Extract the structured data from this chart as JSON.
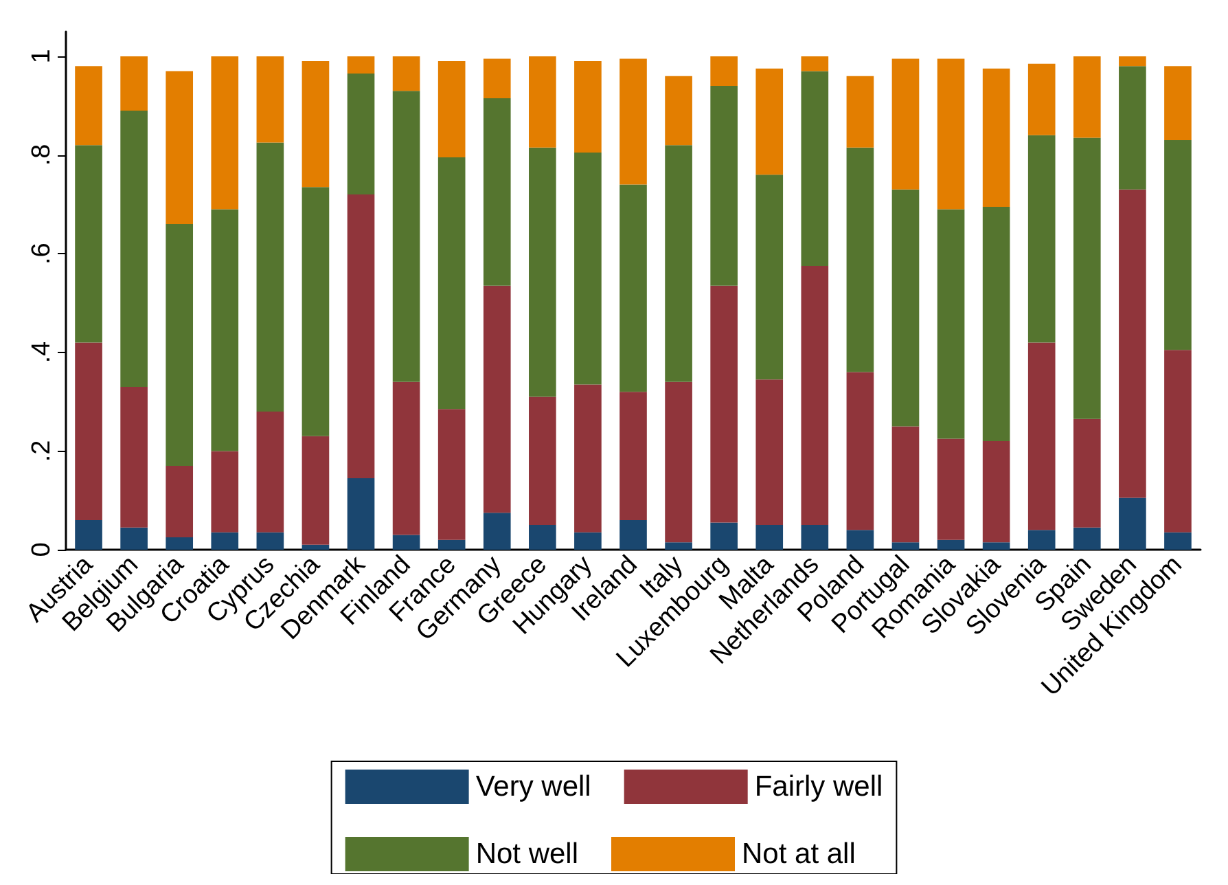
{
  "chart_data": {
    "type": "bar",
    "stacked": true,
    "categories": [
      "Austria",
      "Belgium",
      "Bulgaria",
      "Croatia",
      "Cyprus",
      "Czechia",
      "Denmark",
      "Finland",
      "France",
      "Germany",
      "Greece",
      "Hungary",
      "Ireland",
      "Italy",
      "Luxembourg",
      "Malta",
      "Netherlands",
      "Poland",
      "Portugal",
      "Romania",
      "Slovakia",
      "Slovenia",
      "Spain",
      "Sweden",
      "United Kingdom"
    ],
    "series": [
      {
        "name": "Very well",
        "color": "#1a476f",
        "values": [
          0.06,
          0.045,
          0.025,
          0.035,
          0.035,
          0.01,
          0.145,
          0.03,
          0.02,
          0.075,
          0.05,
          0.035,
          0.06,
          0.015,
          0.055,
          0.05,
          0.05,
          0.04,
          0.015,
          0.02,
          0.015,
          0.04,
          0.045,
          0.105,
          0.035
        ]
      },
      {
        "name": "Fairly well",
        "color": "#90353b",
        "values": [
          0.36,
          0.285,
          0.145,
          0.165,
          0.245,
          0.22,
          0.575,
          0.31,
          0.265,
          0.46,
          0.26,
          0.3,
          0.26,
          0.325,
          0.48,
          0.295,
          0.525,
          0.32,
          0.235,
          0.205,
          0.205,
          0.38,
          0.22,
          0.625,
          0.37
        ]
      },
      {
        "name": "Not well",
        "color": "#55752f",
        "values": [
          0.4,
          0.56,
          0.49,
          0.49,
          0.545,
          0.505,
          0.245,
          0.59,
          0.51,
          0.38,
          0.505,
          0.47,
          0.42,
          0.48,
          0.405,
          0.415,
          0.395,
          0.455,
          0.48,
          0.465,
          0.475,
          0.42,
          0.57,
          0.25,
          0.425
        ]
      },
      {
        "name": "Not at all",
        "color": "#e37e00",
        "values": [
          0.16,
          0.11,
          0.31,
          0.31,
          0.175,
          0.255,
          0.035,
          0.07,
          0.195,
          0.08,
          0.185,
          0.185,
          0.255,
          0.14,
          0.06,
          0.215,
          0.03,
          0.145,
          0.265,
          0.305,
          0.28,
          0.145,
          0.165,
          0.02,
          0.15
        ]
      }
    ],
    "ylim": [
      0,
      1.05
    ],
    "yticks": [
      0,
      {
        "value": 0.2,
        "label": ".2"
      },
      {
        "value": 0.4,
        "label": ".4"
      },
      {
        "value": 0.6,
        "label": ".6"
      },
      {
        "value": 0.8,
        "label": ".8"
      },
      1
    ],
    "grid": false,
    "legend": "bottom"
  }
}
